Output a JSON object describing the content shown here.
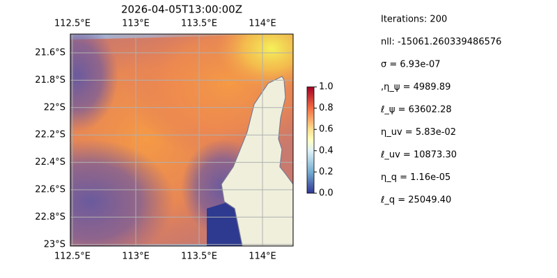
{
  "title": "2026-04-05T13:00:00Z",
  "map": {
    "lon_ticks": [
      {
        "value": 112.5,
        "label": "112.5°E"
      },
      {
        "value": 113,
        "label": "113°E"
      },
      {
        "value": 113.5,
        "label": "113.5°E"
      },
      {
        "value": 114,
        "label": "114°E"
      }
    ],
    "lat_ticks": [
      {
        "value": -21.6,
        "label": "21.6°S"
      },
      {
        "value": -21.8,
        "label": "21.8°S"
      },
      {
        "value": -22,
        "label": "22°S"
      },
      {
        "value": -22.2,
        "label": "22.2°S"
      },
      {
        "value": -22.4,
        "label": "22.4°S"
      },
      {
        "value": -22.6,
        "label": "22.6°S"
      },
      {
        "value": -22.8,
        "label": "22.8°S"
      },
      {
        "value": -23,
        "label": "23°S"
      }
    ]
  },
  "colorbar": {
    "ticks": [
      {
        "value": 0,
        "label": "0.0"
      },
      {
        "value": 0.2,
        "label": "0.2"
      },
      {
        "value": 0.4,
        "label": "0.4"
      },
      {
        "value": 0.6,
        "label": "0.6"
      },
      {
        "value": 0.8,
        "label": "0.8"
      },
      {
        "value": 1,
        "label": "1.0"
      }
    ]
  },
  "info": [
    "Iterations: 200",
    "nll: -15061.260339486576",
    "σ = 6.93e-07",
    ",η_ψ = 4989.89",
    "ℓ_ψ = 63602.28",
    "η_uv = 5.83e-02",
    "ℓ_uv = 10873.30",
    "η_q = 1.16e-05",
    "ℓ_q = 25049.40"
  ]
}
